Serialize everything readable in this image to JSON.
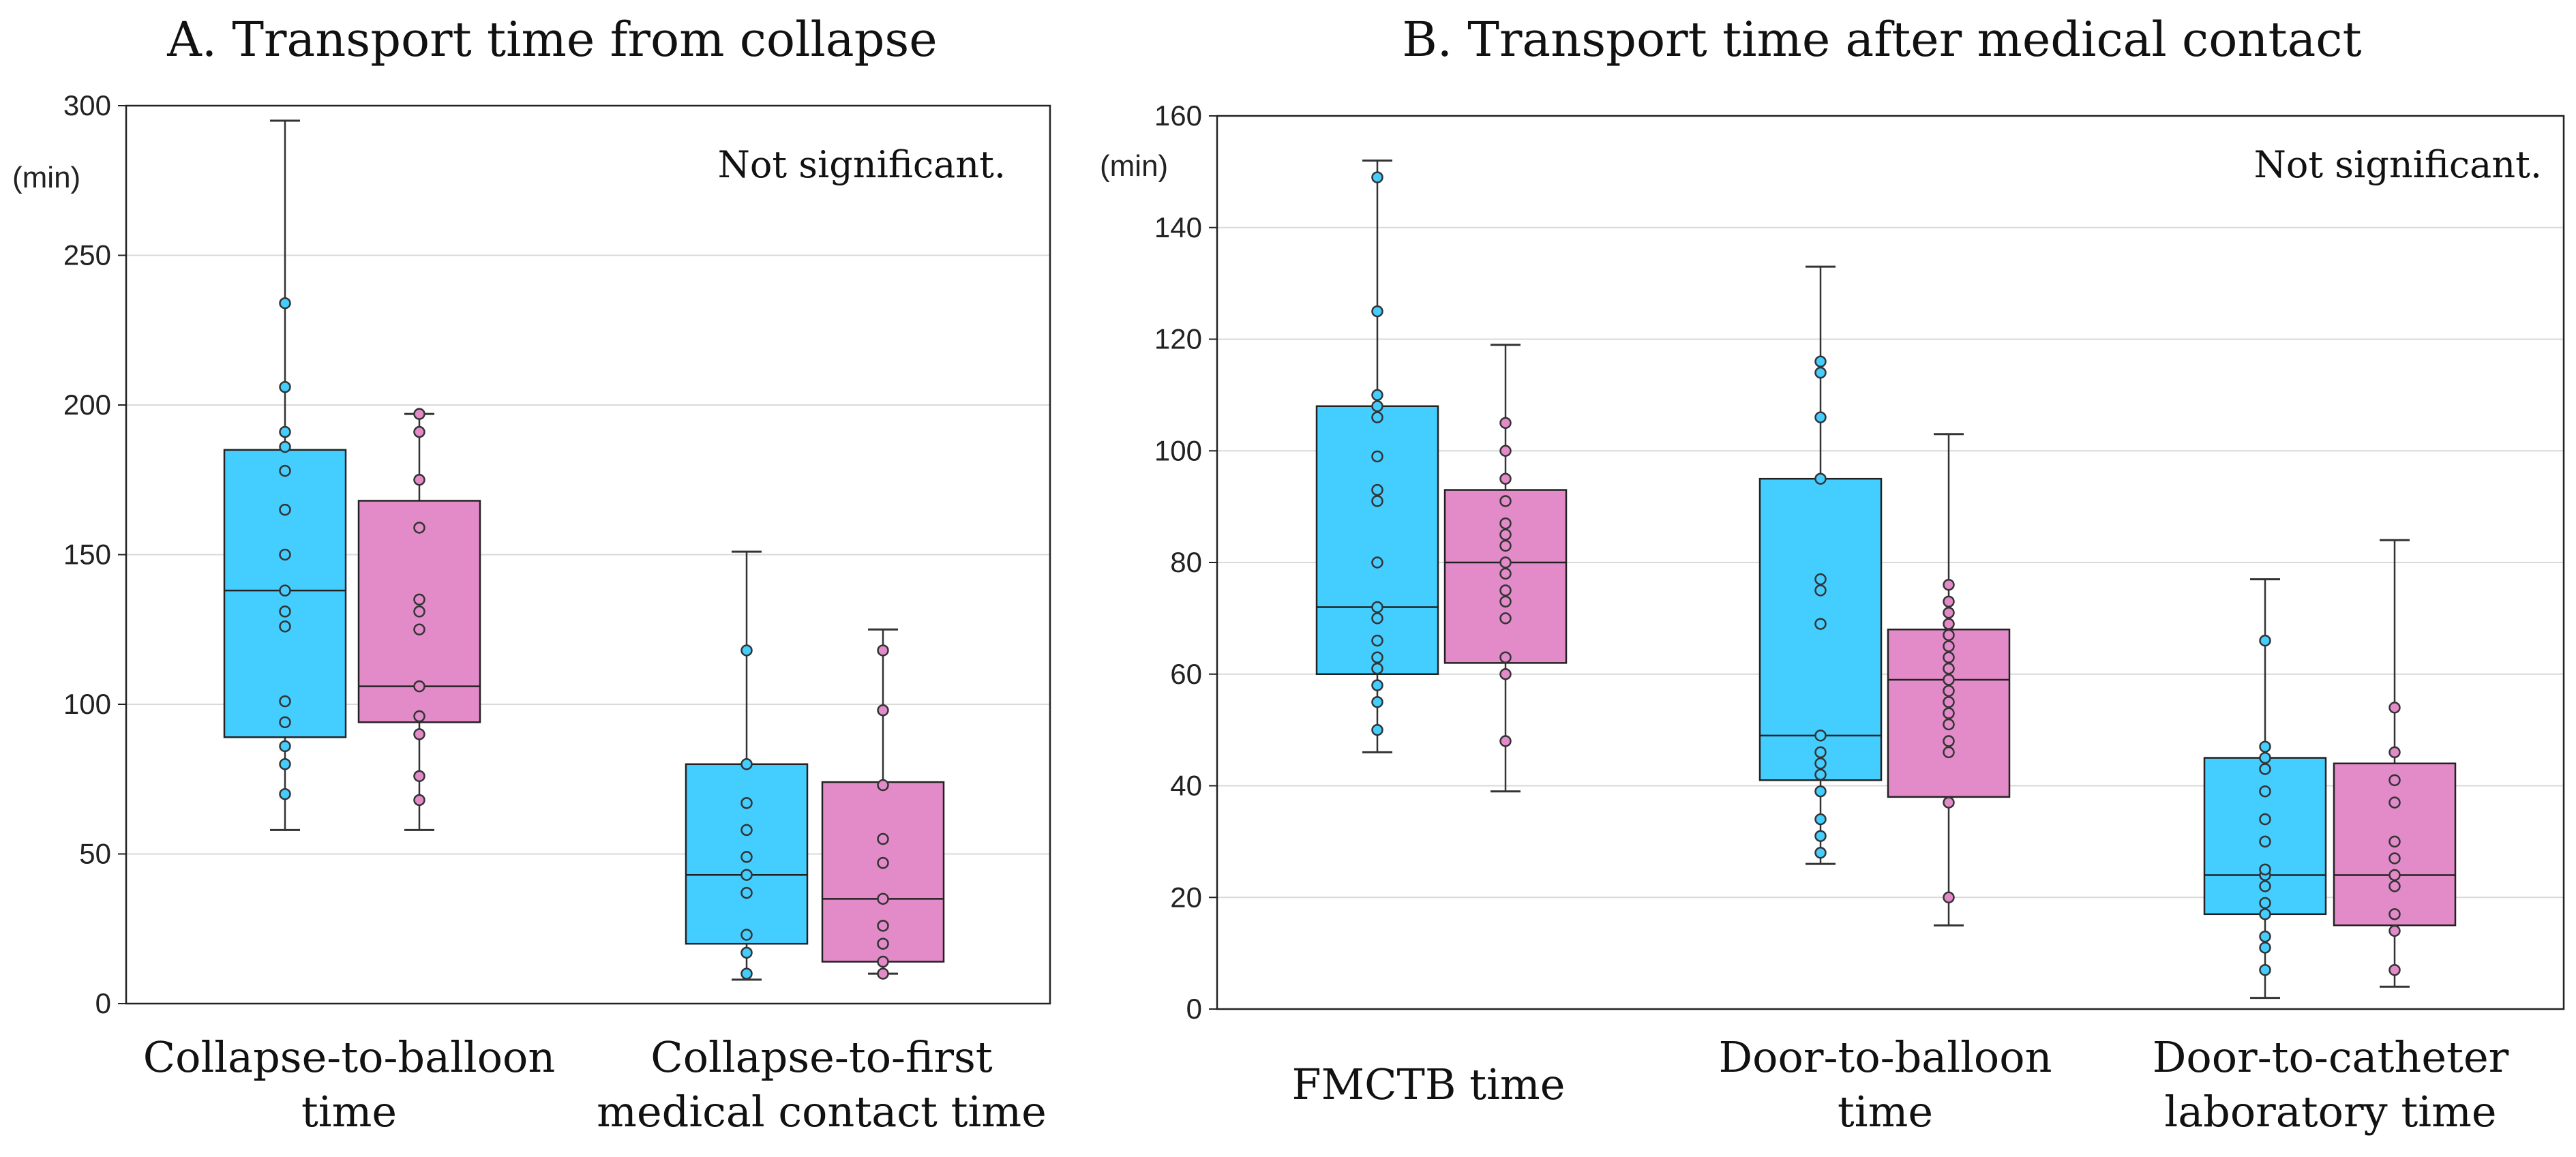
{
  "chart_data": [
    {
      "type": "box",
      "title": "A. Transport time from collapse",
      "ylabel": "(min)",
      "ylim": [
        0,
        300
      ],
      "yticks": [
        0,
        50,
        100,
        150,
        200,
        250,
        300
      ],
      "annotation": "Not significant.",
      "grid": true,
      "categories": [
        {
          "label_lines": [
            "Collapse-to-balloon",
            "time"
          ],
          "groups": [
            {
              "color": "#44CEFF",
              "min": 58,
              "q1": 89,
              "median": 138,
              "q3": 185,
              "max": 295,
              "points": [
                70,
                80,
                86,
                94,
                101,
                126,
                131,
                138,
                150,
                165,
                178,
                186,
                191,
                206,
                234
              ]
            },
            {
              "color": "#E28BC8",
              "min": 58,
              "q1": 94,
              "median": 106,
              "q3": 168,
              "max": 197,
              "points": [
                68,
                76,
                90,
                96,
                106,
                125,
                131,
                135,
                159,
                175,
                191,
                197
              ]
            }
          ]
        },
        {
          "label_lines": [
            "Collapse-to-first",
            "medical contact time"
          ],
          "groups": [
            {
              "color": "#44CEFF",
              "min": 8,
              "q1": 20,
              "median": 43,
              "q3": 80,
              "max": 151,
              "points": [
                10,
                17,
                23,
                37,
                43,
                49,
                58,
                67,
                80,
                118
              ]
            },
            {
              "color": "#E28BC8",
              "min": 10,
              "q1": 14,
              "median": 35,
              "q3": 74,
              "max": 125,
              "points": [
                10,
                14,
                20,
                26,
                35,
                47,
                55,
                73,
                98,
                118
              ]
            }
          ]
        }
      ]
    },
    {
      "type": "box",
      "title": "B. Transport time after medical contact",
      "ylabel": "(min)",
      "ylim": [
        0,
        160
      ],
      "yticks": [
        0,
        20,
        40,
        60,
        80,
        100,
        120,
        140,
        160
      ],
      "annotation": "Not significant.",
      "grid": true,
      "categories": [
        {
          "label_lines": [
            "FMCTB time"
          ],
          "groups": [
            {
              "color": "#44CEFF",
              "min": 46,
              "q1": 60,
              "median": 72,
              "q3": 108,
              "max": 152,
              "points": [
                50,
                55,
                58,
                61,
                63,
                66,
                70,
                72,
                80,
                91,
                93,
                99,
                106,
                108,
                110,
                125,
                149
              ]
            },
            {
              "color": "#E28BC8",
              "min": 39,
              "q1": 62,
              "median": 80,
              "q3": 93,
              "max": 119,
              "points": [
                48,
                60,
                63,
                70,
                73,
                75,
                78,
                80,
                83,
                85,
                87,
                91,
                95,
                100,
                105
              ]
            }
          ]
        },
        {
          "label_lines": [
            "Door-to-balloon",
            "time"
          ],
          "groups": [
            {
              "color": "#44CEFF",
              "min": 26,
              "q1": 41,
              "median": 49,
              "q3": 95,
              "max": 133,
              "points": [
                28,
                31,
                34,
                39,
                42,
                44,
                46,
                49,
                69,
                75,
                77,
                95,
                106,
                114,
                116
              ]
            },
            {
              "color": "#E28BC8",
              "min": 15,
              "q1": 38,
              "median": 59,
              "q3": 68,
              "max": 103,
              "points": [
                20,
                37,
                46,
                48,
                51,
                53,
                55,
                57,
                59,
                61,
                63,
                65,
                67,
                69,
                71,
                73,
                76
              ]
            }
          ]
        },
        {
          "label_lines": [
            "Door-to-catheter",
            "laboratory time"
          ],
          "groups": [
            {
              "color": "#44CEFF",
              "min": 2,
              "q1": 17,
              "median": 24,
              "q3": 45,
              "max": 77,
              "points": [
                7,
                11,
                13,
                17,
                19,
                22,
                24,
                25,
                30,
                34,
                39,
                43,
                45,
                47,
                66
              ]
            },
            {
              "color": "#E28BC8",
              "min": 4,
              "q1": 15,
              "median": 24,
              "q3": 44,
              "max": 84,
              "points": [
                7,
                14,
                17,
                22,
                24,
                27,
                30,
                37,
                41,
                46,
                54
              ]
            }
          ]
        }
      ]
    }
  ]
}
